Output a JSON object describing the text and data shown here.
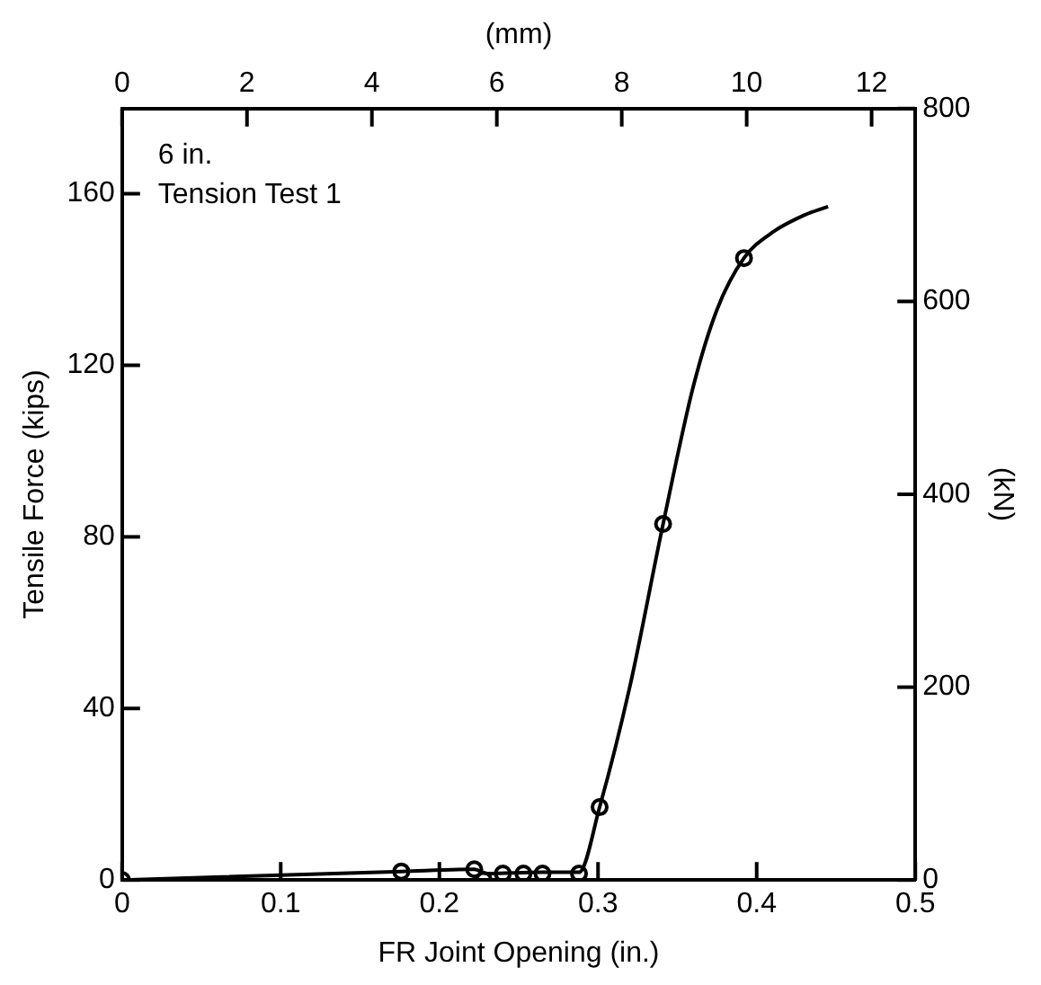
{
  "chart_data": {
    "type": "line",
    "xlabel": "FR Joint Opening (in.)",
    "ylabel": "Tensile Force (kips)",
    "y2label": "(kN)",
    "x2label": "(mm)",
    "annotations": [
      "6 in.",
      "Tension Test 1"
    ],
    "xlim": [
      0,
      0.5
    ],
    "xticks": [
      0,
      0.1,
      0.2,
      0.3,
      0.4,
      0.5
    ],
    "ylim": [
      0,
      179.85
    ],
    "yticks": [
      0,
      40,
      80,
      120,
      160
    ],
    "y2lim": [
      0,
      800
    ],
    "y2ticks": [
      0,
      200,
      400,
      600,
      800
    ],
    "x2lim": [
      0,
      12.7
    ],
    "x2ticks": [
      0,
      2,
      4,
      6,
      8,
      10,
      12
    ],
    "grid": false,
    "legend": false,
    "series": [
      {
        "type": "line",
        "color": "#000000",
        "marker": "none",
        "x": [
          0,
          0.176,
          0.222,
          0.23,
          0.265,
          0.288,
          0.301,
          0.32,
          0.341,
          0.36,
          0.375,
          0.392,
          0.41,
          0.43,
          0.445
        ],
        "values": [
          0,
          2,
          2.5,
          1.5,
          1.8,
          1.8,
          17,
          45,
          83,
          115,
          133,
          145,
          151,
          155,
          157
        ]
      },
      {
        "type": "scatter",
        "color": "#000000",
        "marker": "circle",
        "x": [
          0,
          0.176,
          0.222,
          0.228,
          0.24,
          0.253,
          0.265,
          0.288,
          0.301,
          0.341,
          0.392
        ],
        "values": [
          0,
          2,
          2.5,
          0,
          1.5,
          1.5,
          1.5,
          1.5,
          17,
          83,
          145
        ]
      }
    ]
  }
}
